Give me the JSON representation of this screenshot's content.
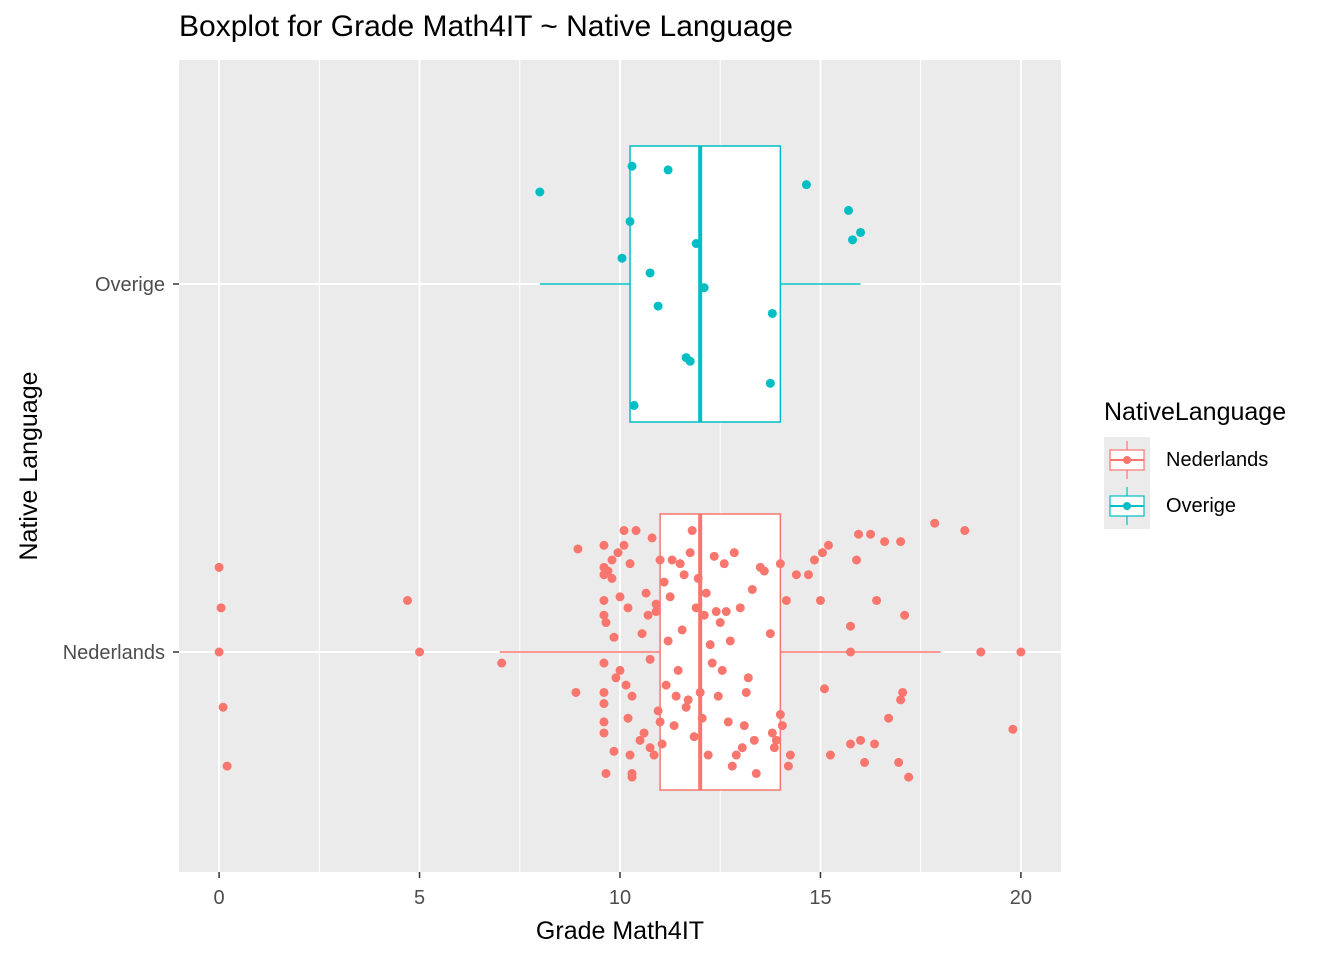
{
  "chart_data": {
    "type": "boxplot",
    "title": "Boxplot for Grade Math4IT ~ Native Language",
    "xlabel": "Grade Math4IT",
    "ylabel": "Native Language",
    "xlim": [
      -1,
      21
    ],
    "x_ticks": [
      0,
      5,
      10,
      15,
      20
    ],
    "x_tick_labels": [
      "0",
      "5",
      "10",
      "15",
      "20"
    ],
    "categories": [
      "Nederlands",
      "Overige"
    ],
    "grid": true,
    "legend_title": "NativeLanguage",
    "legend_position": "right",
    "series": [
      {
        "name": "Nederlands",
        "color": "#F8766D",
        "box": {
          "whisker_low": 7,
          "q1": 11,
          "median": 12,
          "q3": 14,
          "whisker_high": 18
        },
        "points": [
          [
            0,
            0.23
          ],
          [
            0.05,
            0.12
          ],
          [
            0,
            0
          ],
          [
            0.1,
            -0.15
          ],
          [
            0.2,
            -0.31
          ],
          [
            4.7,
            0.14
          ],
          [
            5,
            0
          ],
          [
            7.05,
            -0.03
          ],
          [
            8.9,
            -0.11
          ],
          [
            8.95,
            0.28
          ],
          [
            9.6,
            0.29
          ],
          [
            9.6,
            0.23
          ],
          [
            9.6,
            0.21
          ],
          [
            9.6,
            0.14
          ],
          [
            9.6,
            0.1
          ],
          [
            9.65,
            0.08
          ],
          [
            9.6,
            -0.03
          ],
          [
            9.6,
            -0.11
          ],
          [
            9.6,
            -0.14
          ],
          [
            9.6,
            -0.19
          ],
          [
            9.6,
            -0.22
          ],
          [
            9.65,
            -0.33
          ],
          [
            9.7,
            0.22
          ],
          [
            9.8,
            0.25
          ],
          [
            9.8,
            0.2
          ],
          [
            9.85,
            0.04
          ],
          [
            9.9,
            -0.07
          ],
          [
            9.85,
            -0.27
          ],
          [
            9.95,
            0.27
          ],
          [
            10,
            0.15
          ],
          [
            10,
            -0.05
          ],
          [
            10.1,
            0.33
          ],
          [
            10.1,
            0.29
          ],
          [
            10.15,
            -0.09
          ],
          [
            10.2,
            0.12
          ],
          [
            10.2,
            -0.18
          ],
          [
            10.25,
            -0.28
          ],
          [
            10.25,
            0.24
          ],
          [
            10.3,
            -0.12
          ],
          [
            10.3,
            -0.33
          ],
          [
            10.3,
            -0.34
          ],
          [
            10.4,
            0.33
          ],
          [
            10.5,
            -0.24
          ],
          [
            10.55,
            0.05
          ],
          [
            10.6,
            -0.22
          ],
          [
            10.65,
            0.16
          ],
          [
            10.7,
            0.1
          ],
          [
            10.75,
            -0.02
          ],
          [
            10.75,
            -0.26
          ],
          [
            10.8,
            0.31
          ],
          [
            10.85,
            -0.28
          ],
          [
            10.9,
            0.13
          ],
          [
            10.9,
            0.11
          ],
          [
            10.95,
            -0.16
          ],
          [
            11,
            -0.19
          ],
          [
            11,
            0.25
          ],
          [
            11.05,
            -0.25
          ],
          [
            11.1,
            0.19
          ],
          [
            11.15,
            -0.09
          ],
          [
            11.2,
            0.03
          ],
          [
            11.25,
            0.15
          ],
          [
            11.3,
            0.25
          ],
          [
            11.35,
            -0.2
          ],
          [
            11.4,
            -0.12
          ],
          [
            11.45,
            -0.05
          ],
          [
            11.5,
            0.24
          ],
          [
            11.55,
            0.06
          ],
          [
            11.6,
            0.21
          ],
          [
            11.65,
            -0.15
          ],
          [
            11.7,
            -0.13
          ],
          [
            11.75,
            0.27
          ],
          [
            11.8,
            0.33
          ],
          [
            11.85,
            -0.23
          ],
          [
            11.9,
            0.12
          ],
          [
            11.95,
            0.2
          ],
          [
            12,
            -0.11
          ],
          [
            12.05,
            -0.18
          ],
          [
            12.1,
            0.1
          ],
          [
            12.15,
            0.16
          ],
          [
            12.2,
            -0.28
          ],
          [
            12.25,
            0.02
          ],
          [
            12.3,
            -0.03
          ],
          [
            12.35,
            0.26
          ],
          [
            12.4,
            0.11
          ],
          [
            12.45,
            -0.12
          ],
          [
            12.5,
            0.08
          ],
          [
            12.55,
            -0.05
          ],
          [
            12.6,
            0.24
          ],
          [
            12.65,
            0.11
          ],
          [
            12.7,
            -0.19
          ],
          [
            12.75,
            0.03
          ],
          [
            12.8,
            -0.31
          ],
          [
            12.85,
            0.27
          ],
          [
            12.9,
            -0.28
          ],
          [
            13,
            0.12
          ],
          [
            13.05,
            -0.26
          ],
          [
            13.1,
            -0.2
          ],
          [
            13.15,
            -0.11
          ],
          [
            13.2,
            -0.07
          ],
          [
            13.3,
            0.17
          ],
          [
            13.35,
            -0.24
          ],
          [
            13.4,
            -0.33
          ],
          [
            13.5,
            0.23
          ],
          [
            13.6,
            0.22
          ],
          [
            13.75,
            0.05
          ],
          [
            13.8,
            -0.22
          ],
          [
            13.85,
            -0.26
          ],
          [
            13.9,
            -0.24
          ],
          [
            14,
            0.24
          ],
          [
            14,
            -0.17
          ],
          [
            14.05,
            -0.2
          ],
          [
            14.15,
            0.14
          ],
          [
            14.2,
            -0.31
          ],
          [
            14.25,
            -0.28
          ],
          [
            14.4,
            0.21
          ],
          [
            14.7,
            0.21
          ],
          [
            14.85,
            0.25
          ],
          [
            15,
            0.14
          ],
          [
            15.05,
            0.27
          ],
          [
            15.1,
            -0.1
          ],
          [
            15.2,
            0.29
          ],
          [
            15.25,
            -0.28
          ],
          [
            15.75,
            -0.25
          ],
          [
            15.75,
            0.07
          ],
          [
            15.75,
            0
          ],
          [
            15.9,
            0.25
          ],
          [
            15.95,
            0.32
          ],
          [
            16,
            -0.24
          ],
          [
            16.1,
            -0.3
          ],
          [
            16.25,
            0.32
          ],
          [
            16.35,
            -0.25
          ],
          [
            16.4,
            0.14
          ],
          [
            16.6,
            0.3
          ],
          [
            16.7,
            -0.18
          ],
          [
            16.95,
            -0.3
          ],
          [
            17,
            0.3
          ],
          [
            17,
            -0.13
          ],
          [
            17.05,
            -0.11
          ],
          [
            17.1,
            0.1
          ],
          [
            17.2,
            -0.34
          ],
          [
            17.85,
            0.35
          ],
          [
            18.6,
            0.33
          ],
          [
            19,
            0
          ],
          [
            19.8,
            -0.21
          ],
          [
            20,
            0
          ]
        ]
      },
      {
        "name": "Overige",
        "color": "#00BFC4",
        "box": {
          "whisker_low": 8,
          "q1": 10.25,
          "median": 12,
          "q3": 14,
          "whisker_high": 16
        },
        "points": [
          [
            8,
            0.25
          ],
          [
            10.05,
            0.07
          ],
          [
            10.25,
            0.17
          ],
          [
            10.3,
            0.32
          ],
          [
            10.35,
            -0.33
          ],
          [
            10.75,
            0.03
          ],
          [
            10.95,
            -0.06
          ],
          [
            11.2,
            0.31
          ],
          [
            11.65,
            -0.2
          ],
          [
            11.75,
            -0.21
          ],
          [
            11.9,
            0.11
          ],
          [
            12.1,
            -0.01
          ],
          [
            13.75,
            -0.27
          ],
          [
            13.8,
            -0.08
          ],
          [
            14.65,
            0.27
          ],
          [
            15.7,
            0.2
          ],
          [
            15.8,
            0.12
          ],
          [
            16,
            0.14
          ]
        ]
      }
    ]
  }
}
